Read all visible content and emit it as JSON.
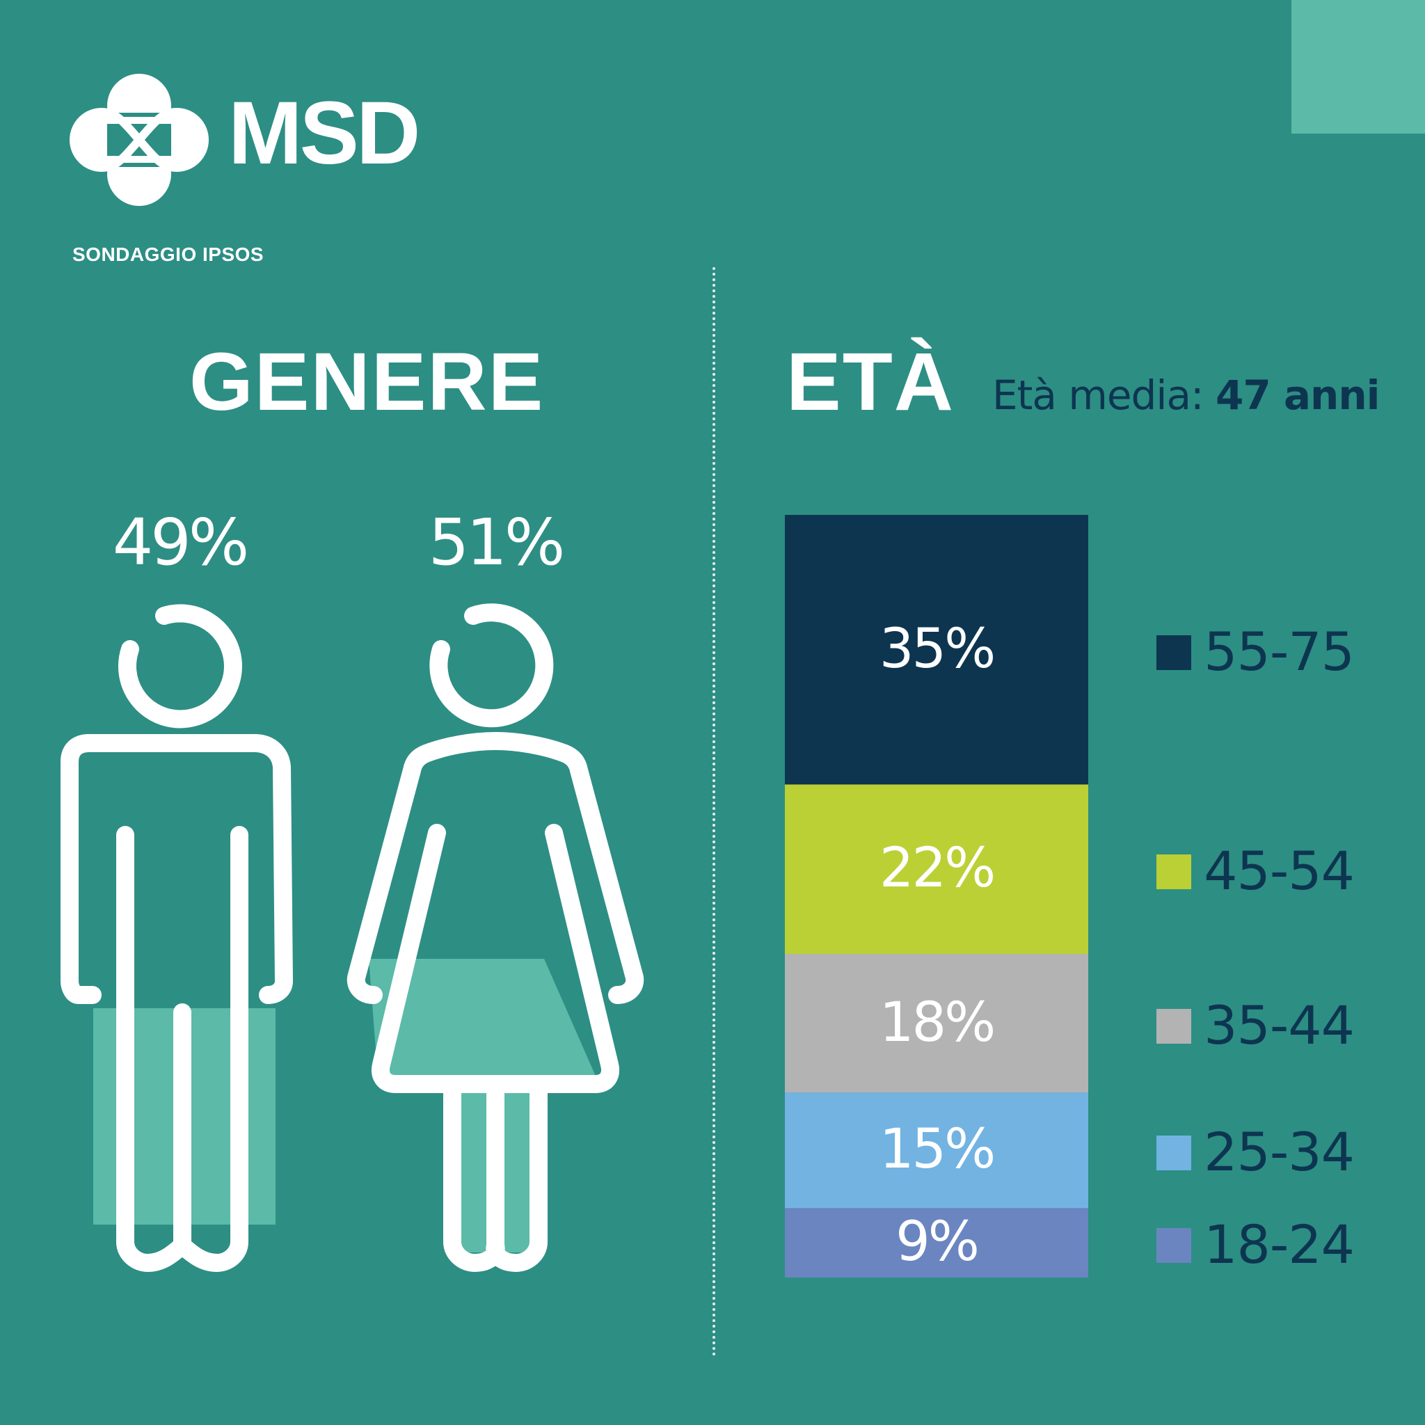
{
  "brand": {
    "name": "MSD",
    "subtitle": "SONDAGGIO IPSOS"
  },
  "colors": {
    "background": "#2d8e84",
    "accent_light": "#5bbaa8",
    "navy": "#0d3550",
    "white": "#ffffff"
  },
  "gender": {
    "heading": "GENERE",
    "male_percent": "49%",
    "female_percent": "51%",
    "male_fill_fraction": 0.49,
    "female_fill_fraction": 0.51
  },
  "age": {
    "heading": "ETÀ",
    "mean_label": "Età media:",
    "mean_value": "47 anni"
  },
  "chart_data": {
    "type": "bar",
    "stacked": true,
    "orientation": "vertical",
    "title": "ETÀ",
    "categories": [
      "55-75",
      "45-54",
      "35-44",
      "25-34",
      "18-24"
    ],
    "values": [
      35,
      22,
      18,
      15,
      9
    ],
    "labels": [
      "35%",
      "22%",
      "18%",
      "15%",
      "9%"
    ],
    "colors": [
      "#0d3550",
      "#bbd035",
      "#b3b3b3",
      "#72b3e2",
      "#6b85c1"
    ],
    "legend_placement": "right",
    "grid": false
  }
}
